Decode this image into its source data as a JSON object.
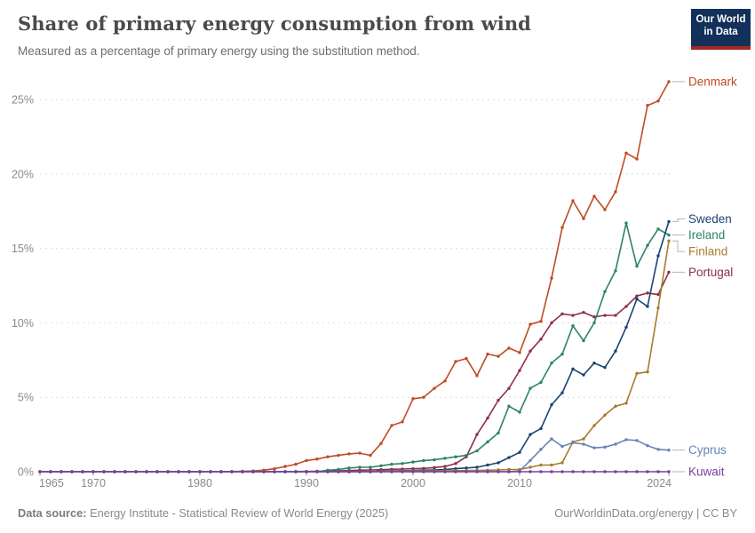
{
  "header": {
    "title": "Share of primary energy consumption from wind",
    "subtitle": "Measured as a percentage of primary energy using the substitution method."
  },
  "logo": {
    "line1": "Our World",
    "line2": "in Data",
    "bg_color": "#12305a",
    "stripe_color": "#a52a22"
  },
  "chart_data": {
    "type": "line",
    "title": "Share of primary energy consumption from wind",
    "xlabel": "",
    "ylabel": "",
    "x_range": [
      1965,
      2024
    ],
    "ylim": [
      0,
      27
    ],
    "grid": true,
    "gridline_color": "#dedede",
    "axis_text_color": "#8a8a8a",
    "legend_position": "right-end-labels",
    "y_tick_values": [
      0,
      5,
      10,
      15,
      20,
      25
    ],
    "y_tick_labels": [
      "0%",
      "5%",
      "10%",
      "15%",
      "20%",
      "25%"
    ],
    "x_tick_values": [
      1965,
      1970,
      1980,
      1990,
      2000,
      2010,
      2024
    ],
    "start_year": 1965,
    "series": [
      {
        "name": "Denmark",
        "color": "#c04b22",
        "values": [
          0,
          0,
          0,
          0,
          0,
          0,
          0,
          0,
          0,
          0,
          0,
          0,
          0,
          0,
          0,
          0,
          0,
          0,
          0.01,
          0.03,
          0.05,
          0.1,
          0.2,
          0.35,
          0.5,
          0.75,
          0.85,
          1.0,
          1.1,
          1.2,
          1.25,
          1.1,
          1.9,
          3.1,
          3.35,
          4.9,
          5.0,
          5.6,
          6.1,
          7.4,
          7.6,
          6.45,
          7.9,
          7.75,
          8.3,
          8.0,
          9.9,
          10.1,
          13.0,
          16.4,
          18.2,
          17.0,
          18.5,
          17.6,
          18.8,
          21.4,
          21.0,
          24.6,
          24.9,
          26.2
        ]
      },
      {
        "name": "Portugal",
        "color": "#8c3046",
        "values": [
          0,
          0,
          0,
          0,
          0,
          0,
          0,
          0,
          0,
          0,
          0,
          0,
          0,
          0,
          0,
          0,
          0,
          0,
          0,
          0,
          0,
          0,
          0,
          0,
          0.01,
          0.02,
          0.03,
          0.04,
          0.06,
          0.08,
          0.1,
          0.12,
          0.14,
          0.16,
          0.18,
          0.2,
          0.22,
          0.28,
          0.35,
          0.55,
          1.0,
          2.5,
          3.6,
          4.8,
          5.6,
          6.8,
          8.1,
          8.9,
          10.0,
          10.6,
          10.5,
          10.7,
          10.4,
          10.5,
          10.5,
          11.1,
          11.8,
          12.0,
          11.9,
          13.4
        ]
      },
      {
        "name": "Ireland",
        "color": "#2c8465",
        "values": [
          0,
          0,
          0,
          0,
          0,
          0,
          0,
          0,
          0,
          0,
          0,
          0,
          0,
          0,
          0,
          0,
          0,
          0,
          0,
          0,
          0,
          0,
          0,
          0,
          0,
          0,
          0,
          0.1,
          0.15,
          0.25,
          0.3,
          0.3,
          0.4,
          0.5,
          0.55,
          0.65,
          0.75,
          0.8,
          0.9,
          1.0,
          1.1,
          1.4,
          2.0,
          2.6,
          4.4,
          4.0,
          5.6,
          6.0,
          7.3,
          7.9,
          9.8,
          8.8,
          10.0,
          12.1,
          13.5,
          16.7,
          13.8,
          15.2,
          16.3,
          15.9
        ]
      },
      {
        "name": "Sweden",
        "color": "#1a4373",
        "values": [
          0,
          0,
          0,
          0,
          0,
          0,
          0,
          0,
          0,
          0,
          0,
          0,
          0,
          0,
          0,
          0,
          0,
          0,
          0,
          0,
          0,
          0,
          0,
          0,
          0,
          0,
          0,
          0,
          0,
          0,
          0,
          0,
          0.05,
          0.06,
          0.07,
          0.08,
          0.1,
          0.12,
          0.15,
          0.2,
          0.25,
          0.3,
          0.45,
          0.6,
          0.95,
          1.3,
          2.5,
          2.9,
          4.5,
          5.3,
          6.9,
          6.5,
          7.3,
          7.0,
          8.1,
          9.7,
          11.6,
          11.1,
          14.5,
          16.8
        ]
      },
      {
        "name": "Finland",
        "color": "#a87b2e",
        "values": [
          0,
          0,
          0,
          0,
          0,
          0,
          0,
          0,
          0,
          0,
          0,
          0,
          0,
          0,
          0,
          0,
          0,
          0,
          0,
          0,
          0,
          0,
          0,
          0,
          0,
          0,
          0,
          0,
          0,
          0,
          0,
          0,
          0.03,
          0.04,
          0.05,
          0.05,
          0.05,
          0.06,
          0.06,
          0.07,
          0.08,
          0.09,
          0.1,
          0.12,
          0.15,
          0.15,
          0.3,
          0.45,
          0.45,
          0.6,
          2.0,
          2.2,
          3.1,
          3.8,
          4.4,
          4.6,
          6.6,
          6.7,
          11.0,
          15.5
        ]
      },
      {
        "name": "Cyprus",
        "color": "#6784b7",
        "values": [
          0,
          0,
          0,
          0,
          0,
          0,
          0,
          0,
          0,
          0,
          0,
          0,
          0,
          0,
          0,
          0,
          0,
          0,
          0,
          0,
          0,
          0,
          0,
          0,
          0,
          0,
          0,
          0,
          0,
          0,
          0,
          0,
          0,
          0,
          0,
          0,
          0,
          0,
          0,
          0,
          0,
          0,
          0,
          0,
          0,
          0.05,
          0.75,
          1.5,
          2.2,
          1.7,
          1.95,
          1.85,
          1.6,
          1.65,
          1.85,
          2.15,
          2.1,
          1.75,
          1.5,
          1.45
        ]
      },
      {
        "name": "Kuwait",
        "color": "#7a3e9e",
        "values": [
          0,
          0,
          0,
          0,
          0,
          0,
          0,
          0,
          0,
          0,
          0,
          0,
          0,
          0,
          0,
          0,
          0,
          0,
          0,
          0,
          0,
          0,
          0,
          0,
          0,
          0,
          0,
          0,
          0,
          0,
          0,
          0,
          0,
          0,
          0,
          0,
          0,
          0,
          0,
          0,
          0,
          0,
          0,
          0,
          0,
          0,
          0,
          0,
          0,
          0,
          0,
          0,
          0,
          0,
          0,
          0,
          0,
          0,
          0,
          0
        ]
      }
    ]
  },
  "footer": {
    "source_label": "Data source:",
    "source_text": " Energy Institute - Statistical Review of World Energy (2025)",
    "credit": "OurWorldinData.org/energy | CC BY"
  }
}
